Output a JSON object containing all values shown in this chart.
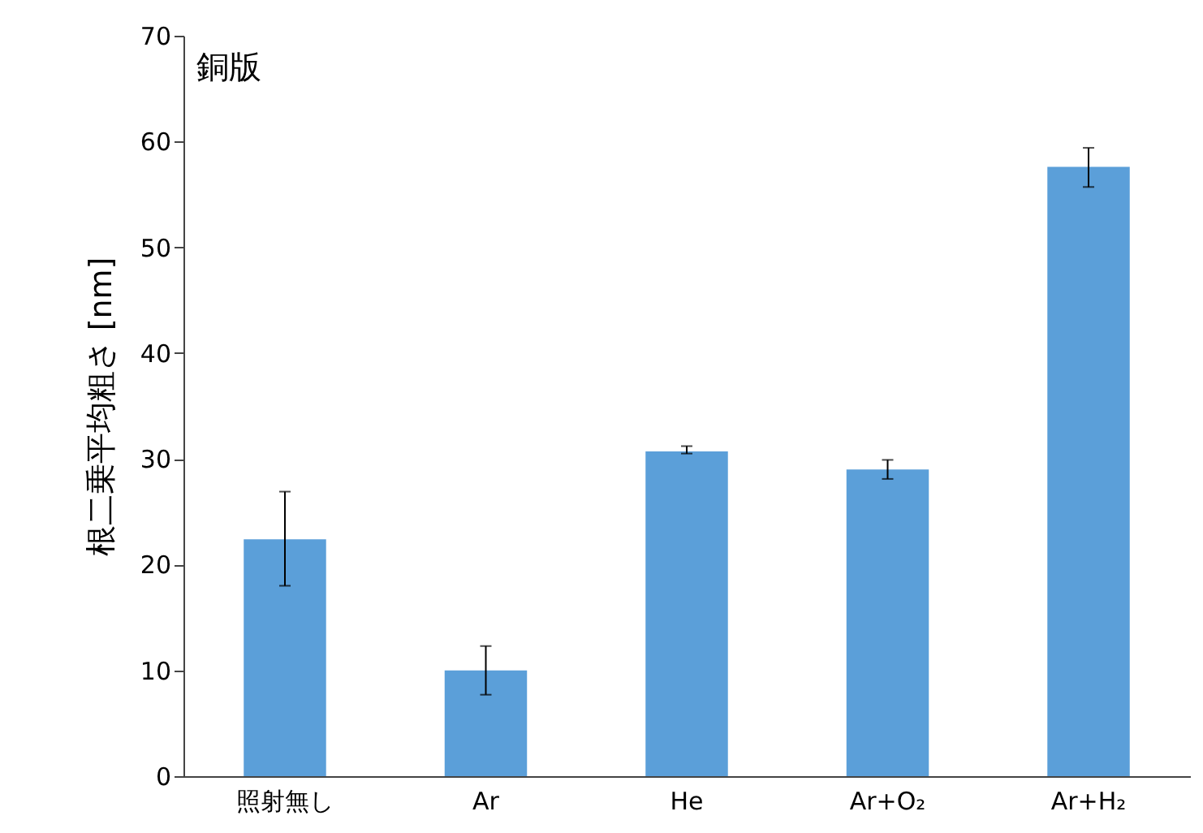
{
  "chart_data": {
    "type": "bar",
    "ylabel": "根二乗平均粗さ [nm]",
    "annotations": [
      "銅版"
    ],
    "categories": [
      "照射無し",
      "Ar",
      "He",
      "Ar+O₂",
      "Ar+H₂"
    ],
    "values": [
      22.4,
      10.0,
      30.7,
      29.0,
      57.6
    ],
    "errors": [
      [
        18.0,
        26.9
      ],
      [
        7.7,
        12.3
      ],
      [
        30.5,
        31.2
      ],
      [
        28.1,
        29.9
      ],
      [
        55.7,
        59.4
      ]
    ],
    "color": "#5b9fd9",
    "ylim": [
      0,
      70
    ],
    "yticks": [
      0,
      10,
      20,
      30,
      40,
      50,
      60,
      70
    ],
    "grid": false
  }
}
